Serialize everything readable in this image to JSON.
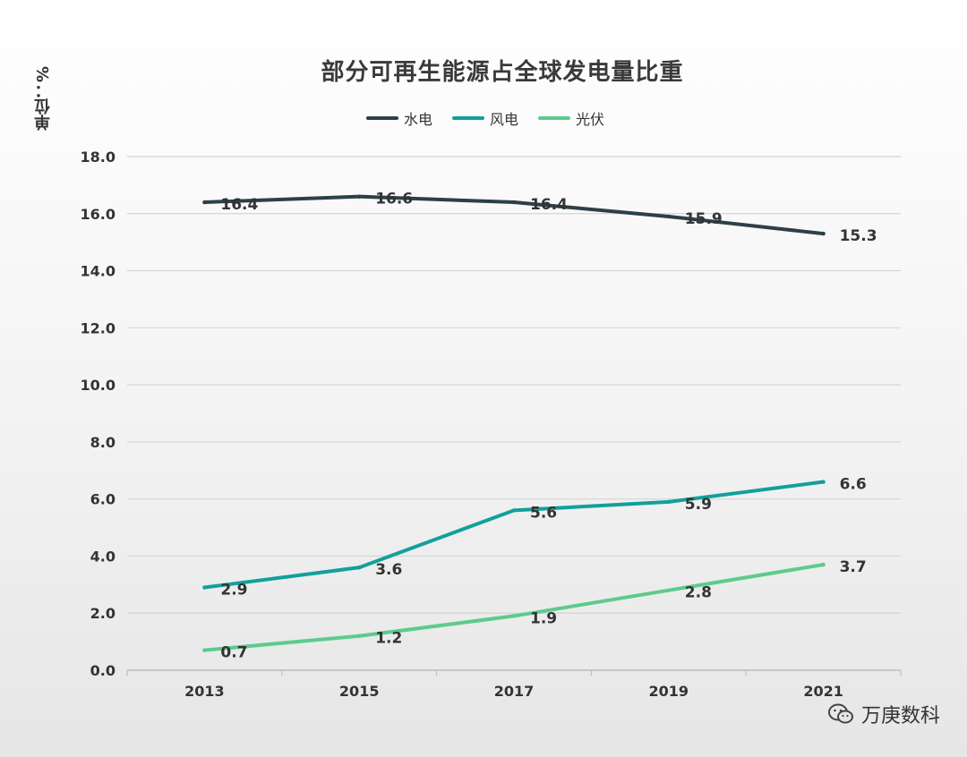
{
  "chart_data": {
    "type": "line",
    "title": "部分可再生能源占全球发电量比重",
    "ylabel": "单位：%",
    "xlabel": "",
    "categories": [
      "2013",
      "2015",
      "2017",
      "2019",
      "2021"
    ],
    "ylim": [
      0,
      18
    ],
    "yticks": [
      "0.0",
      "2.0",
      "4.0",
      "6.0",
      "8.0",
      "10.0",
      "12.0",
      "14.0",
      "16.0",
      "18.0"
    ],
    "grid": true,
    "legend_position": "top-center",
    "series": [
      {
        "name": "水电",
        "color": "#2d3f47",
        "values": [
          16.4,
          16.6,
          16.4,
          15.9,
          15.3
        ],
        "labels": [
          "16.4",
          "16.6",
          "16.4",
          "15.9",
          "15.3"
        ]
      },
      {
        "name": "风电",
        "color": "#12a09a",
        "values": [
          2.9,
          3.6,
          5.6,
          5.9,
          6.6
        ],
        "labels": [
          "2.9",
          "3.6",
          "5.6",
          "5.9",
          "6.6"
        ]
      },
      {
        "name": "光伏",
        "color": "#5ccb8e",
        "values": [
          0.7,
          1.2,
          1.9,
          2.8,
          3.7
        ],
        "labels": [
          "0.7",
          "1.2",
          "1.9",
          "2.8",
          "3.7"
        ]
      }
    ]
  },
  "watermark": {
    "text": "万庚数科",
    "icon": "wechat-icon"
  }
}
